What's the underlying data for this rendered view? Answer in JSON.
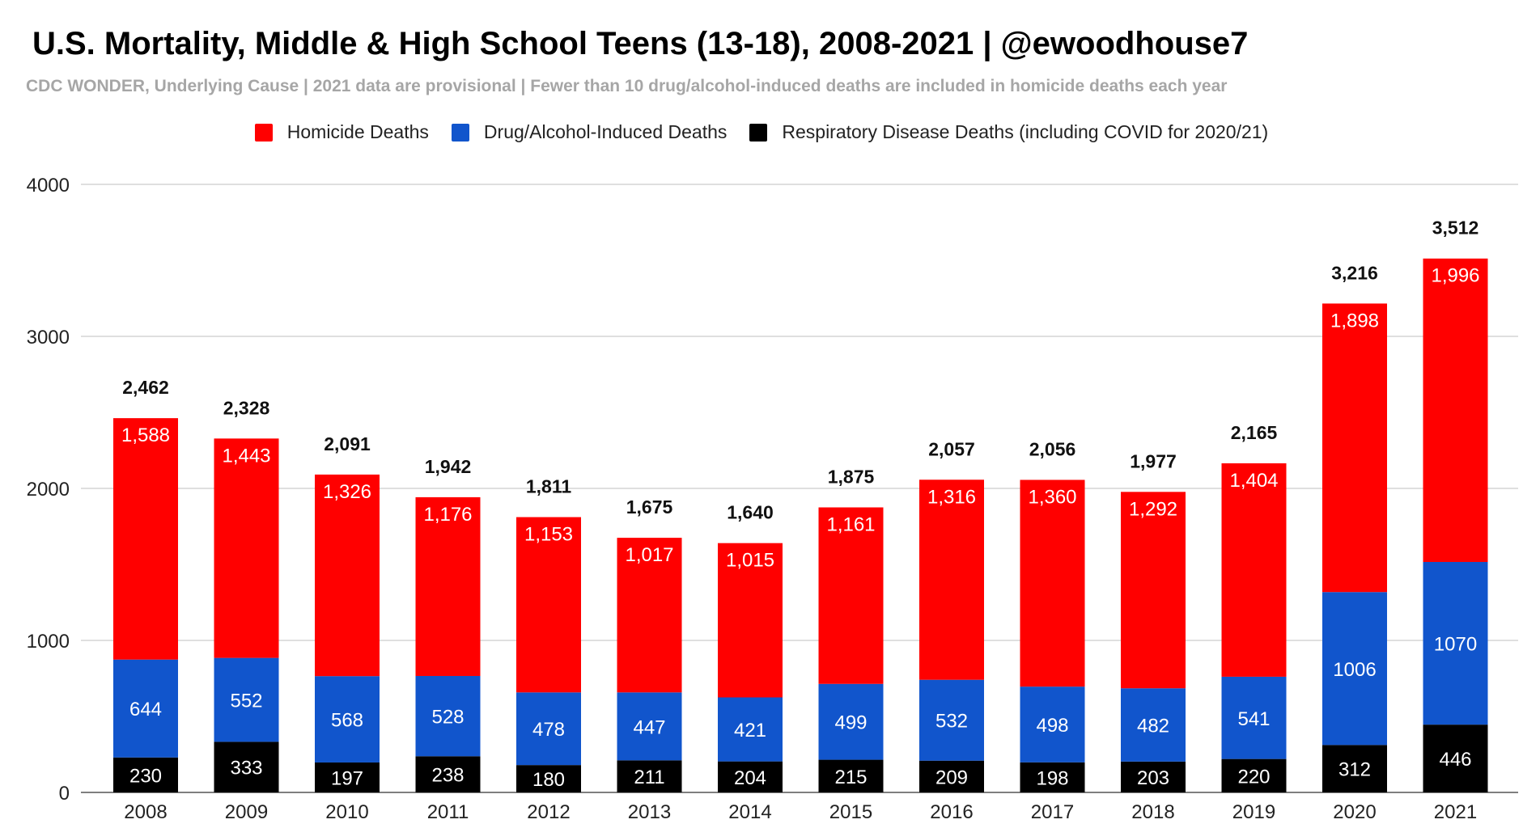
{
  "page": {
    "title": "U.S. Mortality, Middle & High School Teens (13-18), 2008-2021 | @ewoodhouse7",
    "subtitle": "CDC WONDER, Underlying Cause | 2021 data are provisional | Fewer than 10 drug/alcohol-induced deaths are included in homicide deaths each year"
  },
  "chart_data": {
    "type": "bar",
    "stacked": true,
    "title": "U.S. Mortality, Middle & High School Teens (13-18), 2008-2021 | @ewoodhouse7",
    "subtitle": "CDC WONDER, Underlying Cause | 2021 data are provisional | Fewer than 10 drug/alcohol-induced deaths are included in homicide deaths each year",
    "xlabel": "",
    "ylabel": "",
    "ylim": [
      0,
      4000
    ],
    "yticks": [
      "0",
      "1000",
      "2000",
      "3000",
      "4000"
    ],
    "grid": true,
    "legend_position": "top",
    "categories": [
      "2008",
      "2009",
      "2010",
      "2011",
      "2012",
      "2013",
      "2014",
      "2015",
      "2016",
      "2017",
      "2018",
      "2019",
      "2020",
      "2021"
    ],
    "series": [
      {
        "name": "Respiratory Disease Deaths (including COVID for 2020/21)",
        "color": "#000000",
        "values": [
          230,
          333,
          197,
          238,
          180,
          211,
          204,
          215,
          209,
          198,
          203,
          220,
          312,
          446
        ],
        "labels": [
          "230",
          "333",
          "197",
          "238",
          "180",
          "211",
          "204",
          "215",
          "209",
          "198",
          "203",
          "220",
          "312",
          "446"
        ]
      },
      {
        "name": "Drug/Alcohol-Induced Deaths",
        "color": "#1155cc",
        "values": [
          644,
          552,
          568,
          528,
          478,
          447,
          421,
          499,
          532,
          498,
          482,
          541,
          1006,
          1070
        ],
        "labels": [
          "644",
          "552",
          "568",
          "528",
          "478",
          "447",
          "421",
          "499",
          "532",
          "498",
          "482",
          "541",
          "1006",
          "1070"
        ]
      },
      {
        "name": "Homicide Deaths",
        "color": "#ff0000",
        "values": [
          1588,
          1443,
          1326,
          1176,
          1153,
          1017,
          1015,
          1161,
          1316,
          1360,
          1292,
          1404,
          1898,
          1996
        ],
        "labels": [
          "1,588",
          "1,443",
          "1,326",
          "1,176",
          "1,153",
          "1,017",
          "1,015",
          "1,161",
          "1,316",
          "1,360",
          "1,292",
          "1,404",
          "1,898",
          "1,996"
        ]
      }
    ],
    "legend_order": [
      "Homicide Deaths",
      "Drug/Alcohol-Induced Deaths",
      "Respiratory Disease Deaths (including COVID for 2020/21)"
    ],
    "totals": [
      2462,
      2328,
      2091,
      1942,
      1811,
      1675,
      1640,
      1875,
      2057,
      2056,
      1977,
      2165,
      3216,
      3512
    ],
    "total_labels": [
      "2,462",
      "2,328",
      "2,091",
      "1,942",
      "1,811",
      "1,675",
      "1,640",
      "1,875",
      "2,057",
      "2,056",
      "1,977",
      "2,165",
      "3,216",
      "3,512"
    ]
  }
}
